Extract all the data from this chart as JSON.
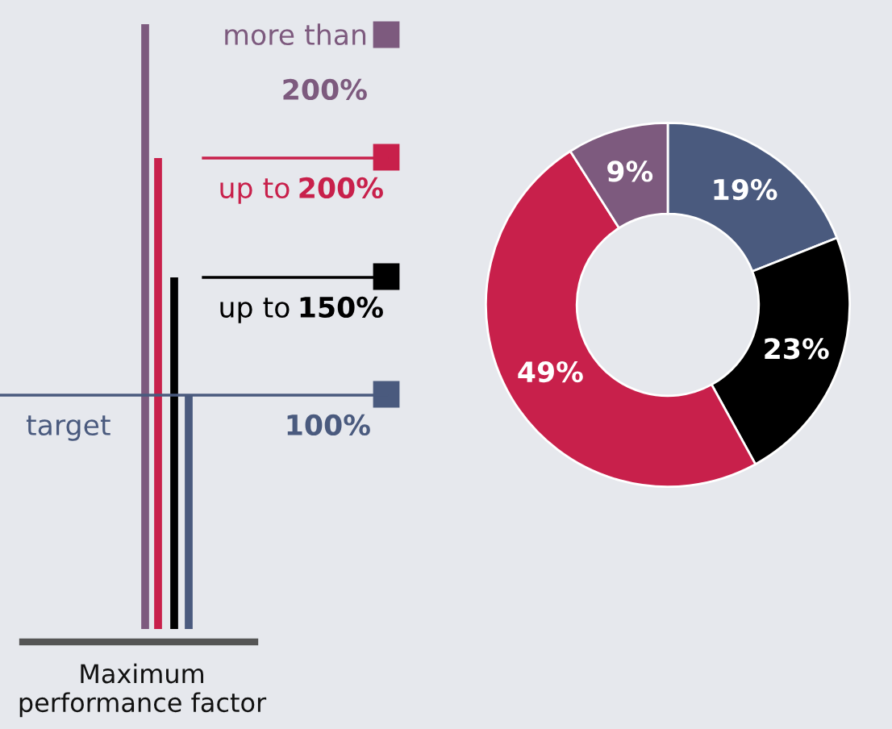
{
  "chart_data": {
    "type": "donut",
    "categories": [
      "100%",
      "up to 150%",
      "up to 200%",
      "more than 200%"
    ],
    "values": [
      19,
      23,
      49,
      9
    ],
    "colors": [
      "#4a5a7e",
      "#000000",
      "#c8204b",
      "#7d5a7e"
    ],
    "value_labels": [
      "19%",
      "23%",
      "49%",
      "9%"
    ],
    "legend": "left",
    "legend_title": "Maximum performance factor",
    "annotations": [
      "target"
    ]
  }
}
